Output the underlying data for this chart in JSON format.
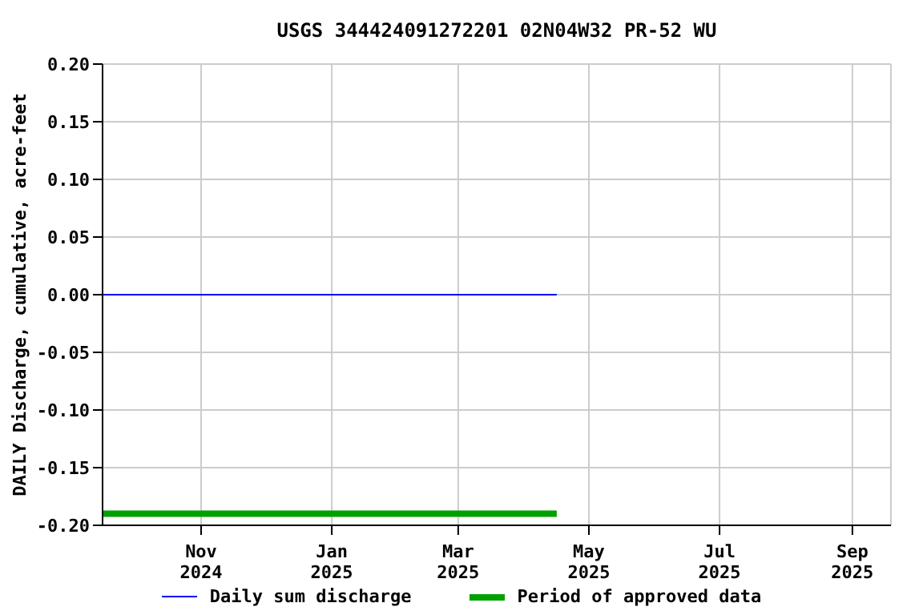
{
  "chart_data": {
    "type": "line",
    "title": "USGS 344424091272201 02N04W32 PR-52 WU",
    "ylabel": "DAILY Discharge, cumulative, acre-feet",
    "series": [
      {
        "name": "Daily sum discharge",
        "color": "#0000ff",
        "x": [
          "2024-09-16",
          "2025-04-16"
        ],
        "values": [
          0,
          0
        ]
      },
      {
        "name": "Period of approved data",
        "color": "#00a000",
        "x": [
          "2024-09-16",
          "2025-04-16"
        ],
        "values": [
          -0.19,
          -0.19
        ]
      }
    ],
    "xlim": [
      "2024-09-16",
      "2025-09-19"
    ],
    "xticks": [
      {
        "value": "2024-11-01",
        "label": "Nov 2024"
      },
      {
        "value": "2025-01-01",
        "label": "Jan 2025"
      },
      {
        "value": "2025-03-01",
        "label": "Mar 2025"
      },
      {
        "value": "2025-05-01",
        "label": "May 2025"
      },
      {
        "value": "2025-07-01",
        "label": "Jul 2025"
      },
      {
        "value": "2025-09-01",
        "label": "Sep 2025"
      }
    ],
    "ylim": [
      -0.2,
      0.2
    ],
    "yticks": [
      {
        "value": -0.2,
        "label": "-0.20"
      },
      {
        "value": -0.15,
        "label": "-0.15"
      },
      {
        "value": -0.1,
        "label": "-0.10"
      },
      {
        "value": -0.05,
        "label": "-0.05"
      },
      {
        "value": 0,
        "label": "0.00"
      },
      {
        "value": 0.05,
        "label": "0.05"
      },
      {
        "value": 0.1,
        "label": "0.10"
      },
      {
        "value": 0.15,
        "label": "0.15"
      },
      {
        "value": 0.2,
        "label": "0.20"
      }
    ],
    "grid": true,
    "legend": "bottom",
    "marker": "none",
    "line_style": "solid"
  }
}
